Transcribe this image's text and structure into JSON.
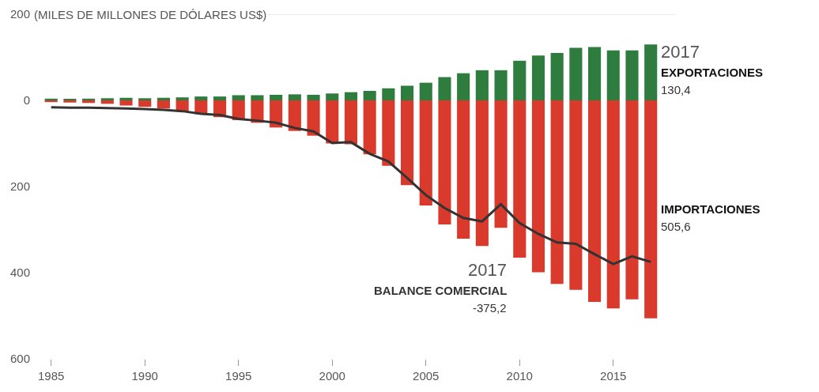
{
  "chart_data": {
    "type": "bar",
    "stacked": true,
    "ylabel": "(MILES DE MILLONES DE DÓLARES US$)",
    "x": [
      1985,
      1986,
      1987,
      1988,
      1989,
      1990,
      1991,
      1992,
      1993,
      1994,
      1995,
      1996,
      1997,
      1998,
      1999,
      2000,
      2001,
      2002,
      2003,
      2004,
      2005,
      2006,
      2007,
      2008,
      2009,
      2010,
      2011,
      2012,
      2013,
      2014,
      2015,
      2016,
      2017
    ],
    "series": [
      {
        "name": "EXPORTACIONES",
        "color": "#2e7d3e",
        "values": [
          4,
          3,
          4,
          5,
          6,
          5,
          6,
          7,
          9,
          9,
          12,
          12,
          13,
          14,
          13,
          16,
          19,
          22,
          28,
          34,
          41,
          54,
          63,
          70,
          70,
          92,
          104,
          110,
          122,
          124,
          116,
          116,
          130
        ]
      },
      {
        "name": "IMPORTACIONES",
        "color": "#d93a2b",
        "values": [
          -4,
          -5,
          -6,
          -8,
          -12,
          -15,
          -19,
          -26,
          -32,
          -39,
          -46,
          -52,
          -63,
          -71,
          -82,
          -100,
          -102,
          -125,
          -152,
          -197,
          -244,
          -288,
          -321,
          -338,
          -296,
          -365,
          -399,
          -426,
          -440,
          -468,
          -483,
          -462,
          -506
        ]
      },
      {
        "name": "BALANCE COMERCIAL",
        "type": "line",
        "color": "#333333",
        "values": [
          -16,
          -17,
          -17,
          -18,
          -19,
          -20,
          -22,
          -25,
          -31,
          -34,
          -43,
          -47,
          -52,
          -64,
          -72,
          -99,
          -97,
          -124,
          -142,
          -180,
          -220,
          -250,
          -273,
          -281,
          -241,
          -285,
          -310,
          -330,
          -333,
          -357,
          -380,
          -362,
          -375
        ]
      }
    ],
    "annotations": [
      "2017",
      "130,4",
      "505,6",
      "2017",
      "-375,2"
    ],
    "ref_lines": [
      {
        "axis": "y",
        "value": 200,
        "color": "#d9d9d9"
      }
    ],
    "xlim": [
      1984,
      2018.3
    ],
    "xticks": [
      1985,
      1990,
      1995,
      2000,
      2005,
      2010,
      2015
    ],
    "ylim": [
      -600,
      200
    ],
    "yticks": [
      {
        "value": 200,
        "label": "200"
      },
      {
        "value": 0,
        "label": "0"
      },
      {
        "value": -200,
        "label": "200"
      },
      {
        "value": -400,
        "label": "400"
      },
      {
        "value": -600,
        "label": "600"
      }
    ],
    "line_style": "solid"
  }
}
